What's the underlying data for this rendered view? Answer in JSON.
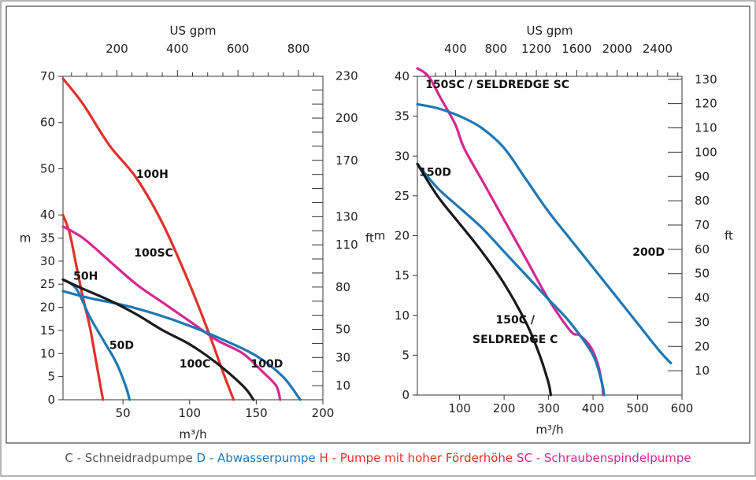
{
  "colors": {
    "C": "#1a1a1a",
    "D": "#1f77b4",
    "H": "#e0312a",
    "SC": "#d6278f"
  },
  "legend": [
    {
      "text": "C - Schneidradpumpe",
      "color": "#555555"
    },
    {
      "text": "D - Abwasserpumpe",
      "color": "#1f77b4"
    },
    {
      "text": "H - Pumpe mit hoher Förderhöhe",
      "color": "#e0312a"
    },
    {
      "text": "SC -  Schraubenspindelpumpe",
      "color": "#d6278f"
    }
  ],
  "chart_data": [
    {
      "type": "line",
      "xlabel": "m³/h",
      "ylabel": "m",
      "top_axis_title": "US gpm",
      "right_axis_title": "ft",
      "xlim": [
        5,
        200
      ],
      "ylim": [
        0,
        70
      ],
      "x_ticks": [
        50,
        100,
        150,
        200
      ],
      "y_ticks": [
        0,
        5,
        10,
        15,
        20,
        25,
        30,
        35,
        40,
        50,
        60,
        70
      ],
      "top_ticks": [
        200,
        400,
        600,
        800
      ],
      "right_ticks": [
        10,
        30,
        50,
        80,
        110,
        130,
        170,
        200,
        230
      ],
      "series": [
        {
          "name": "100H",
          "kind": "H",
          "x": [
            5,
            20,
            40,
            60,
            80,
            100,
            115,
            125,
            133
          ],
          "y": [
            69.5,
            64,
            55,
            48,
            38,
            25,
            14,
            6,
            0
          ]
        },
        {
          "name": "50H",
          "kind": "H",
          "x": [
            5,
            10,
            15,
            20,
            25,
            30,
            35
          ],
          "y": [
            40,
            36,
            29,
            22,
            16,
            8,
            0
          ]
        },
        {
          "name": "100SC",
          "kind": "SC",
          "x": [
            5,
            20,
            40,
            60,
            80,
            100,
            120,
            140,
            155,
            165,
            168
          ],
          "y": [
            37.5,
            35,
            30,
            25,
            21,
            17,
            13,
            10,
            6,
            3,
            0
          ]
        },
        {
          "name": "100D",
          "kind": "D",
          "x": [
            5,
            25,
            50,
            75,
            100,
            125,
            150,
            170,
            183
          ],
          "y": [
            23.5,
            22,
            20.5,
            18.5,
            16,
            13,
            9.5,
            5,
            0
          ]
        },
        {
          "name": "50D",
          "kind": "D",
          "x": [
            5,
            15,
            25,
            35,
            45,
            52,
            55
          ],
          "y": [
            26,
            24,
            18,
            13,
            8,
            3,
            0
          ]
        },
        {
          "name": "100C",
          "kind": "C",
          "x": [
            5,
            20,
            40,
            60,
            80,
            100,
            120,
            140,
            148
          ],
          "y": [
            26,
            24,
            21.5,
            18.5,
            15,
            12,
            8,
            3,
            0
          ]
        }
      ],
      "labels": [
        {
          "text": "100H",
          "x": 72,
          "y": 48
        },
        {
          "text": "100SC",
          "x": 73,
          "y": 31
        },
        {
          "text": "50H",
          "x": 22,
          "y": 26
        },
        {
          "text": "50D",
          "x": 49,
          "y": 11
        },
        {
          "text": "100C",
          "x": 104,
          "y": 7
        },
        {
          "text": "100D",
          "x": 158,
          "y": 7
        }
      ]
    },
    {
      "type": "line",
      "xlabel": "m³/h",
      "ylabel": "m",
      "top_axis_title": "US gpm",
      "right_axis_title": "ft",
      "xlim": [
        5,
        600
      ],
      "ylim": [
        0,
        40
      ],
      "x_ticks": [
        100,
        200,
        300,
        400,
        500,
        600
      ],
      "y_ticks": [
        0,
        5,
        10,
        15,
        20,
        25,
        30,
        35,
        40
      ],
      "top_ticks": [
        400,
        800,
        1200,
        1600,
        2000,
        2400
      ],
      "right_ticks": [
        10,
        20,
        30,
        40,
        50,
        60,
        70,
        80,
        90,
        100,
        110,
        120,
        130
      ],
      "series": [
        {
          "name": "150SC / SELDREDGE SC",
          "kind": "SC",
          "x": [
            5,
            30,
            60,
            90,
            110,
            150,
            200,
            250,
            300,
            350,
            370,
            395,
            410,
            420,
            423
          ],
          "y": [
            41,
            40,
            37,
            34,
            31,
            27,
            22,
            17,
            12,
            8,
            7.5,
            6,
            4,
            1.5,
            0
          ]
        },
        {
          "name": "200D",
          "kind": "D",
          "x": [
            5,
            50,
            100,
            150,
            200,
            250,
            300,
            350,
            400,
            450,
            500,
            550,
            575
          ],
          "y": [
            36.5,
            36,
            35,
            33.5,
            31,
            27,
            23,
            19.5,
            16,
            12.5,
            9,
            5.5,
            4
          ]
        },
        {
          "name": "150D",
          "kind": "D",
          "x": [
            5,
            50,
            100,
            150,
            200,
            250,
            300,
            350,
            400,
            420,
            425
          ],
          "y": [
            29,
            26,
            23.5,
            21,
            18,
            15,
            12,
            9,
            5,
            1.5,
            0
          ]
        },
        {
          "name": "150C / SELDREDGE C",
          "kind": "C",
          "x": [
            5,
            50,
            100,
            150,
            200,
            250,
            280,
            300,
            305
          ],
          "y": [
            29,
            25,
            21.5,
            18,
            14,
            9,
            5,
            1.5,
            0
          ]
        }
      ],
      "labels": [
        {
          "text": "150SC / SELDREDGE SC",
          "x": 185,
          "y": 38.5
        },
        {
          "text": "150D",
          "x": 45,
          "y": 27.5
        },
        {
          "text": "200D",
          "x": 525,
          "y": 17.5
        },
        {
          "text": "150C /",
          "x": 225,
          "y": 9
        },
        {
          "text": "SELDREDGE C",
          "x": 225,
          "y": 6.5
        }
      ]
    }
  ]
}
